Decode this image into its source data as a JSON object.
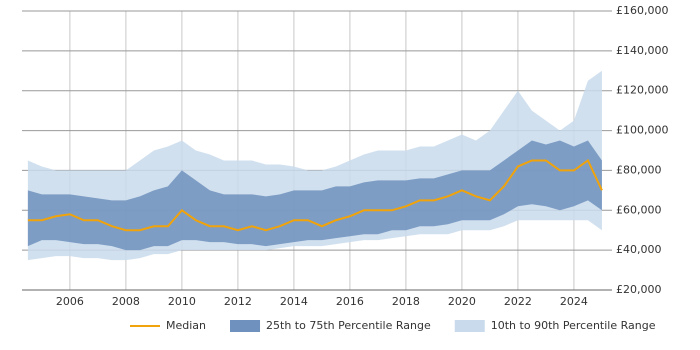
{
  "chart_data": {
    "type": "line",
    "x": [
      2004.5,
      2005,
      2005.5,
      2006,
      2006.5,
      2007,
      2007.5,
      2008,
      2008.5,
      2009,
      2009.5,
      2010,
      2010.5,
      2011,
      2011.5,
      2012,
      2012.5,
      2013,
      2013.5,
      2014,
      2014.5,
      2015,
      2015.5,
      2016,
      2016.5,
      2017,
      2017.5,
      2018,
      2018.5,
      2019,
      2019.5,
      2020,
      2020.5,
      2021,
      2021.5,
      2022,
      2022.5,
      2023,
      2023.5,
      2024,
      2024.5,
      2025
    ],
    "series": [
      {
        "name": "10th to 90th Percentile Range",
        "color": "#c9daec",
        "low": [
          35000,
          36000,
          37000,
          37000,
          36000,
          36000,
          35000,
          35000,
          36000,
          38000,
          38000,
          40000,
          40000,
          40000,
          40000,
          40000,
          40000,
          40000,
          41000,
          42000,
          42000,
          42000,
          43000,
          44000,
          45000,
          45000,
          46000,
          47000,
          48000,
          48000,
          48000,
          50000,
          50000,
          50000,
          52000,
          55000,
          55000,
          55000,
          55000,
          55000,
          55000,
          50000
        ],
        "high": [
          85000,
          82000,
          80000,
          80000,
          80000,
          80000,
          80000,
          80000,
          85000,
          90000,
          92000,
          95000,
          90000,
          88000,
          85000,
          85000,
          85000,
          83000,
          83000,
          82000,
          80000,
          80000,
          82000,
          85000,
          88000,
          90000,
          90000,
          90000,
          92000,
          92000,
          95000,
          98000,
          95000,
          100000,
          110000,
          120000,
          110000,
          105000,
          100000,
          105000,
          125000,
          130000
        ]
      },
      {
        "name": "25th to 75th Percentile Range",
        "color": "#6f91bd",
        "low": [
          42000,
          45000,
          45000,
          44000,
          43000,
          43000,
          42000,
          40000,
          40000,
          42000,
          42000,
          45000,
          45000,
          44000,
          44000,
          43000,
          43000,
          42000,
          43000,
          44000,
          45000,
          45000,
          46000,
          47000,
          48000,
          48000,
          50000,
          50000,
          52000,
          52000,
          53000,
          55000,
          55000,
          55000,
          58000,
          62000,
          63000,
          62000,
          60000,
          62000,
          65000,
          60000
        ],
        "high": [
          70000,
          68000,
          68000,
          68000,
          67000,
          66000,
          65000,
          65000,
          67000,
          70000,
          72000,
          80000,
          75000,
          70000,
          68000,
          68000,
          68000,
          67000,
          68000,
          70000,
          70000,
          70000,
          72000,
          72000,
          74000,
          75000,
          75000,
          75000,
          76000,
          76000,
          78000,
          80000,
          80000,
          80000,
          85000,
          90000,
          95000,
          93000,
          95000,
          92000,
          95000,
          85000
        ]
      },
      {
        "name": "Median",
        "color": "#f0a30a",
        "values": [
          55000,
          55000,
          57000,
          58000,
          55000,
          55000,
          52000,
          50000,
          50000,
          52000,
          52000,
          60000,
          55000,
          52000,
          52000,
          50000,
          52000,
          50000,
          52000,
          55000,
          55000,
          52000,
          55000,
          57000,
          60000,
          60000,
          60000,
          62000,
          65000,
          65000,
          67000,
          70000,
          67000,
          65000,
          72000,
          82000,
          85000,
          85000,
          80000,
          80000,
          85000,
          70000
        ]
      }
    ],
    "xlim": [
      2004.29,
      2025.36
    ],
    "xticks": [
      2006,
      2008,
      2010,
      2012,
      2014,
      2016,
      2018,
      2020,
      2022,
      2024
    ],
    "ylim": [
      20000,
      160000
    ],
    "yticks": [
      {
        "value": 20000,
        "label": "£20,000"
      },
      {
        "value": 40000,
        "label": "£40,000"
      },
      {
        "value": 60000,
        "label": "£60,000"
      },
      {
        "value": 80000,
        "label": "£80,000"
      },
      {
        "value": 100000,
        "label": "£100,000"
      },
      {
        "value": 120000,
        "label": "£120,000"
      },
      {
        "value": 140000,
        "label": "£140,000"
      },
      {
        "value": 160000,
        "label": "£160,000"
      }
    ],
    "grid": true,
    "legend": "bottom"
  }
}
